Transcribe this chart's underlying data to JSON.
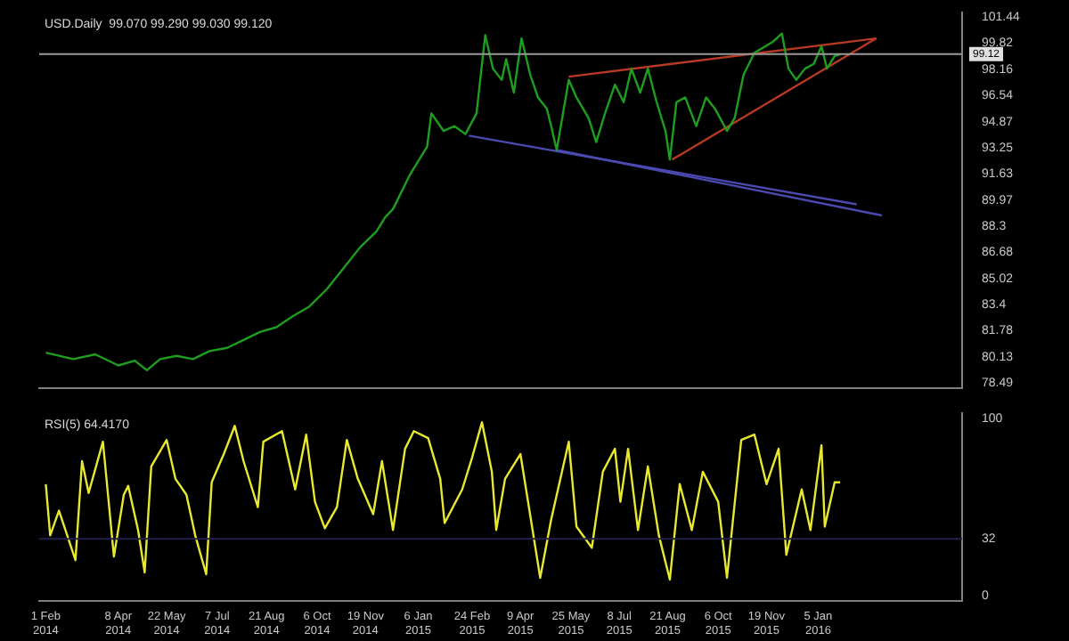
{
  "chart_data": [
    {
      "type": "line",
      "title": "USD.Daily  99.070 99.290 99.030 99.120",
      "xlim": [
        "2014-01-26",
        "2016-05-15"
      ],
      "ylim": [
        78.2,
        101.7
      ],
      "yticks": [
        101.44,
        99.82,
        98.16,
        96.54,
        94.87,
        93.25,
        91.63,
        89.97,
        88.3,
        86.68,
        85.02,
        83.4,
        81.78,
        80.13,
        78.49
      ],
      "tick_labels": "y",
      "grid": false,
      "legend": false,
      "marker": "none",
      "ref_lines": [
        {
          "axis": "y",
          "value": 99.12,
          "label": "99.12",
          "color": "#9a9a9a"
        }
      ],
      "series": [
        {
          "color": "#1e9e1e",
          "x": [
            "2014-02-01",
            "2014-02-26",
            "2014-03-18",
            "2014-04-08",
            "2014-04-23",
            "2014-05-04",
            "2014-05-16",
            "2014-05-31",
            "2014-06-15",
            "2014-06-30",
            "2014-07-16",
            "2014-07-31",
            "2014-08-15",
            "2014-08-30",
            "2014-09-14",
            "2014-09-29",
            "2014-10-15",
            "2014-10-30",
            "2014-11-14",
            "2014-11-29",
            "2014-12-07",
            "2014-12-14",
            "2014-12-29",
            "2015-01-14",
            "2015-01-18",
            "2015-01-29",
            "2015-02-08",
            "2015-02-18",
            "2015-02-28",
            "2015-03-08",
            "2015-03-15",
            "2015-03-23",
            "2015-03-27",
            "2015-04-03",
            "2015-04-10",
            "2015-04-18",
            "2015-04-25",
            "2015-05-03",
            "2015-05-07",
            "2015-05-12",
            "2015-05-23",
            "2015-05-30",
            "2015-06-10",
            "2015-06-17",
            "2015-06-25",
            "2015-07-04",
            "2015-07-12",
            "2015-07-19",
            "2015-07-27",
            "2015-08-03",
            "2015-08-11",
            "2015-08-19",
            "2015-08-23",
            "2015-08-29",
            "2015-09-06",
            "2015-09-16",
            "2015-09-25",
            "2015-10-03",
            "2015-10-14",
            "2015-10-21",
            "2015-10-29",
            "2015-11-08",
            "2015-11-18",
            "2015-11-25",
            "2015-12-03",
            "2015-12-09",
            "2015-12-16",
            "2015-12-24",
            "2016-01-01",
            "2016-01-08",
            "2016-01-13",
            "2016-01-20",
            "2016-01-25"
          ],
          "values": [
            80.4,
            80.0,
            80.3,
            79.6,
            79.9,
            79.3,
            80.0,
            80.2,
            80.0,
            80.5,
            80.7,
            81.2,
            81.7,
            82.0,
            82.7,
            83.3,
            84.4,
            85.7,
            87.0,
            88.0,
            88.9,
            89.4,
            91.5,
            93.3,
            95.4,
            94.3,
            94.6,
            94.1,
            95.4,
            100.3,
            98.2,
            97.5,
            98.8,
            96.7,
            100.1,
            97.8,
            96.4,
            95.7,
            94.6,
            93.1,
            97.5,
            96.4,
            95.1,
            93.6,
            95.4,
            97.2,
            96.1,
            98.2,
            96.7,
            98.2,
            96.1,
            94.3,
            92.5,
            96.1,
            96.4,
            94.6,
            96.4,
            95.7,
            94.3,
            95.1,
            97.8,
            99.2,
            99.6,
            99.9,
            100.4,
            98.2,
            97.5,
            98.2,
            98.5,
            99.6,
            98.2,
            99.0,
            99.1
          ]
        },
        {
          "type": "line",
          "color": "#b83a22",
          "x": [
            "2015-05-23",
            "2016-02-27"
          ],
          "values": [
            97.7,
            100.1
          ]
        },
        {
          "type": "line",
          "color": "#b83a22",
          "x": [
            "2015-08-25",
            "2016-02-27"
          ],
          "values": [
            92.5,
            100.1
          ]
        },
        {
          "type": "line",
          "color": "#4a4ab0",
          "x": [
            "2015-02-21",
            "2016-02-09"
          ],
          "values": [
            94.0,
            89.7
          ]
        },
        {
          "type": "line",
          "color": "#4a4ab0",
          "x": [
            "2015-05-12",
            "2016-03-03"
          ],
          "values": [
            93.1,
            89.0
          ]
        }
      ]
    },
    {
      "type": "line",
      "title": "RSI(5) 64.4170",
      "xlim": [
        "2014-01-26",
        "2016-05-15"
      ],
      "ylim": [
        -3,
        103
      ],
      "yticks": [
        100,
        32,
        0
      ],
      "xticks": [
        {
          "value": "2014-02-01",
          "label": "1 Feb 2014"
        },
        {
          "value": "2014-04-08",
          "label": "8 Apr 2014"
        },
        {
          "value": "2014-05-22",
          "label": "22 May 2014"
        },
        {
          "value": "2014-07-07",
          "label": "7 Jul 2014"
        },
        {
          "value": "2014-08-21",
          "label": "21 Aug 2014"
        },
        {
          "value": "2014-10-06",
          "label": "6 Oct 2014"
        },
        {
          "value": "2014-11-19",
          "label": "19 Nov 2014"
        },
        {
          "value": "2015-01-06",
          "label": "6 Jan 2015"
        },
        {
          "value": "2015-02-24",
          "label": "24 Feb 2015"
        },
        {
          "value": "2015-04-09",
          "label": "9 Apr 2015"
        },
        {
          "value": "2015-05-25",
          "label": "25 May 2015"
        },
        {
          "value": "2015-07-08",
          "label": "8 Jul 2015"
        },
        {
          "value": "2015-08-21",
          "label": "21 Aug 2015"
        },
        {
          "value": "2015-10-06",
          "label": "6 Oct 2015"
        },
        {
          "value": "2015-11-19",
          "label": "19 Nov 2015"
        },
        {
          "value": "2016-01-05",
          "label": "5 Jan 2016"
        }
      ],
      "grid": false,
      "legend": false,
      "marker": "none",
      "ref_lines": [
        {
          "axis": "y",
          "value": 32,
          "color": "#23234a"
        }
      ],
      "series": [
        {
          "color": "#e8e830",
          "x": [
            "2014-02-01",
            "2014-02-05",
            "2014-02-13",
            "2014-02-28",
            "2014-03-06",
            "2014-03-12",
            "2014-03-25",
            "2014-04-04",
            "2014-04-13",
            "2014-04-17",
            "2014-04-26",
            "2014-05-02",
            "2014-05-08",
            "2014-05-22",
            "2014-05-30",
            "2014-06-09",
            "2014-06-17",
            "2014-06-27",
            "2014-07-02",
            "2014-07-13",
            "2014-07-23",
            "2014-07-31",
            "2014-08-13",
            "2014-08-18",
            "2014-09-04",
            "2014-09-16",
            "2014-09-26",
            "2014-10-04",
            "2014-10-13",
            "2014-10-24",
            "2014-11-02",
            "2014-11-12",
            "2014-11-26",
            "2014-12-04",
            "2014-12-14",
            "2014-12-25",
            "2015-01-02",
            "2015-01-15",
            "2015-01-26",
            "2015-01-30",
            "2015-02-15",
            "2015-02-24",
            "2015-03-05",
            "2015-03-14",
            "2015-03-18",
            "2015-03-26",
            "2015-04-09",
            "2015-04-27",
            "2015-05-07",
            "2015-05-23",
            "2015-05-30",
            "2015-06-13",
            "2015-06-23",
            "2015-07-04",
            "2015-07-09",
            "2015-07-16",
            "2015-07-25",
            "2015-08-03",
            "2015-08-13",
            "2015-08-23",
            "2015-09-01",
            "2015-09-12",
            "2015-09-22",
            "2015-10-06",
            "2015-10-14",
            "2015-10-27",
            "2015-11-08",
            "2015-11-19",
            "2015-11-30",
            "2015-12-07",
            "2015-12-21",
            "2015-12-29",
            "2016-01-08",
            "2016-01-11",
            "2016-01-20",
            "2016-01-25"
          ],
          "values": [
            63,
            34,
            48,
            20,
            76,
            58,
            87,
            22,
            57,
            62,
            37,
            13,
            73,
            88,
            66,
            57,
            34,
            12,
            64,
            80,
            96,
            76,
            50,
            87,
            93,
            60,
            91,
            53,
            38,
            50,
            88,
            66,
            46,
            76,
            37,
            83,
            93,
            89,
            66,
            41,
            60,
            78,
            98,
            70,
            37,
            66,
            80,
            10,
            43,
            87,
            39,
            27,
            70,
            83,
            53,
            83,
            37,
            73,
            34,
            9,
            63,
            37,
            70,
            53,
            10,
            88,
            91,
            63,
            83,
            23,
            60,
            37,
            85,
            39,
            64,
            64
          ]
        }
      ]
    }
  ]
}
